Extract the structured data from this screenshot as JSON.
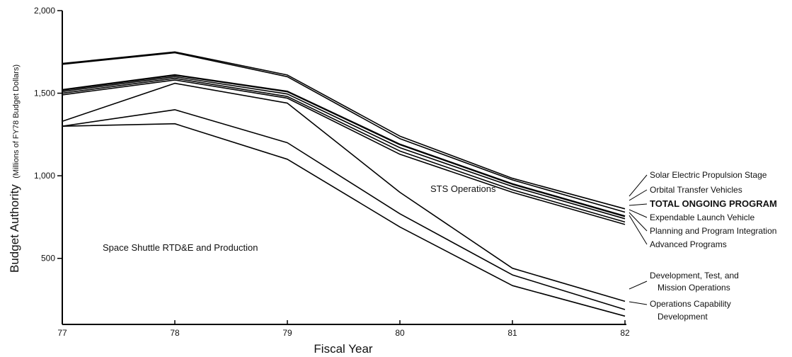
{
  "chart_data": {
    "type": "line",
    "xlabel": "Fiscal Year",
    "ylabel": "Budget Authority",
    "ylabel_sub": "(Millions of FY78 Budget Dollars)",
    "x": [
      "77",
      "78",
      "79",
      "80",
      "81",
      "82"
    ],
    "y_ticks": [
      "500",
      "1,000",
      "1,500",
      "2,000"
    ],
    "y_tick_values": [
      500,
      1000,
      1500,
      2000
    ],
    "xlim": [
      77,
      82
    ],
    "ylim": [
      100,
      2000
    ],
    "grid": false,
    "annotations": [
      {
        "text": "Space Shuttle RTD&E and Production"
      },
      {
        "text": "STS Operations"
      }
    ],
    "series": [
      {
        "name": "Solar Electric Propulsion Stage",
        "values": [
          1680,
          1750,
          1610,
          1240,
          985,
          800
        ]
      },
      {
        "name": "Orbital Transfer Vehicles",
        "values": [
          1675,
          1745,
          1600,
          1225,
          975,
          780
        ]
      },
      {
        "name": "TOTAL ONGOING PROGRAM",
        "values": [
          1520,
          1610,
          1510,
          1190,
          950,
          755
        ],
        "bold": true
      },
      {
        "name": "Expendable Launch Vehicle",
        "values": [
          1510,
          1600,
          1495,
          1170,
          935,
          740
        ]
      },
      {
        "name": "Planning and Program Integration",
        "values": [
          1500,
          1590,
          1480,
          1150,
          915,
          720
        ]
      },
      {
        "name": "Advanced Programs",
        "values": [
          1490,
          1580,
          1470,
          1130,
          900,
          705
        ]
      },
      {
        "name": "Development, Test, and Mission Operations",
        "values": [
          1330,
          1560,
          1440,
          900,
          440,
          240
        ]
      },
      {
        "name": "Operations Capability Development",
        "values": [
          1300,
          1400,
          1200,
          770,
          400,
          190
        ]
      },
      {
        "name": "",
        "values": [
          1300,
          1315,
          1100,
          690,
          335,
          150
        ]
      }
    ],
    "legend": [
      "Solar Electric Propulsion Stage",
      "Orbital Transfer Vehicles",
      "TOTAL ONGOING PROGRAM",
      "Expendable Launch Vehicle",
      "Planning and Program Integration",
      "Advanced Programs",
      "Development, Test, and",
      "Mission Operations",
      "Operations Capability",
      "Development"
    ]
  }
}
